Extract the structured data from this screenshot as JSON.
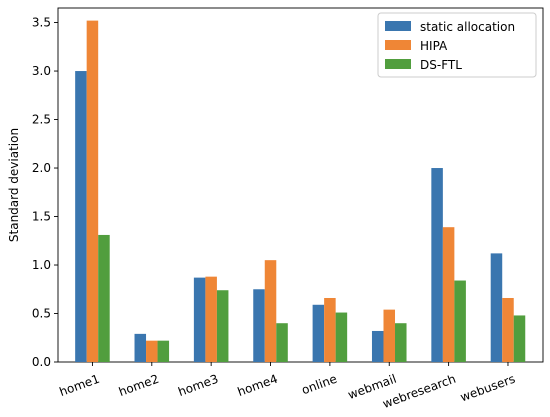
{
  "chart_data": {
    "type": "bar",
    "title": "",
    "xlabel": "",
    "ylabel": "Standard deviation",
    "ylim": [
      0,
      3.65
    ],
    "yticks": [
      0.0,
      0.5,
      1.0,
      1.5,
      2.0,
      2.5,
      3.0,
      3.5
    ],
    "ytick_labels": [
      "0.0",
      "0.5",
      "1.0",
      "1.5",
      "2.0",
      "2.5",
      "3.0",
      "3.5"
    ],
    "categories": [
      "home1",
      "home2",
      "home3",
      "home4",
      "online",
      "webmail",
      "webresearch",
      "webusers"
    ],
    "series": [
      {
        "name": "static allocation",
        "color": "#3a76af",
        "values": [
          3.0,
          0.29,
          0.87,
          0.75,
          0.59,
          0.32,
          2.0,
          1.12
        ]
      },
      {
        "name": "HIPA",
        "color": "#ef8636",
        "values": [
          3.52,
          0.22,
          0.88,
          1.05,
          0.66,
          0.54,
          1.39,
          0.66
        ]
      },
      {
        "name": "DS-FTL",
        "color": "#519e3e",
        "values": [
          1.31,
          0.22,
          0.74,
          0.4,
          0.51,
          0.4,
          0.84,
          0.48
        ]
      }
    ],
    "legend_position": "top-right",
    "grid": false
  }
}
